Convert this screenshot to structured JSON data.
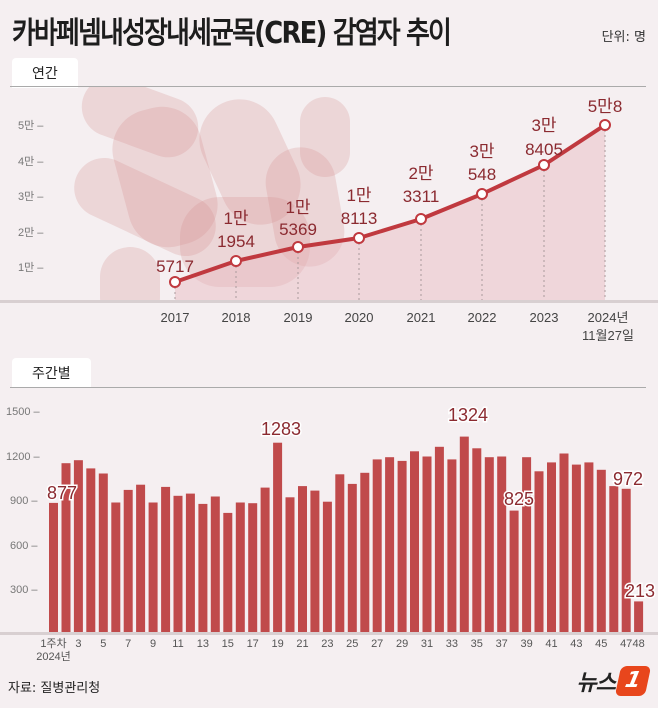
{
  "header": {
    "title": "카바페넴내성장내세균목(CRE) 감염자 추이",
    "unit": "단위: 명"
  },
  "annual_tab": {
    "label": "연간"
  },
  "weekly_tab": {
    "label": "주간별"
  },
  "footer": {
    "source": "자료: 질병관리청",
    "logo_text": "뉴스",
    "logo_mark": "1"
  },
  "colors": {
    "accent": "#c0474a",
    "label": "#8b2a30",
    "background": "#f5eff1"
  },
  "chart_data": [
    {
      "type": "line",
      "title": "연간",
      "categories": [
        "2017",
        "2018",
        "2019",
        "2020",
        "2021",
        "2022",
        "2023",
        "2024년 11월27일"
      ],
      "values": [
        5717,
        11954,
        15369,
        18113,
        23311,
        30548,
        38405,
        58000
      ],
      "data_labels": [
        "5717",
        "1만\n1954",
        "1만\n5369",
        "1만\n8113",
        "2만\n3311",
        "3만\n548",
        "3만\n8405",
        "5만8"
      ],
      "yticks": [
        "1만",
        "2만",
        "3만",
        "4만",
        "5만"
      ],
      "ylim": [
        0,
        60000
      ],
      "xlabel": "",
      "ylabel": "",
      "area_fill": true,
      "grid": false
    },
    {
      "type": "bar",
      "title": "주간별",
      "x_note": "2024년",
      "first_label": "1주차",
      "categories": [
        "1",
        "2",
        "3",
        "4",
        "5",
        "6",
        "7",
        "8",
        "9",
        "10",
        "11",
        "12",
        "13",
        "14",
        "15",
        "16",
        "17",
        "18",
        "19",
        "20",
        "21",
        "22",
        "23",
        "24",
        "25",
        "26",
        "27",
        "28",
        "29",
        "30",
        "31",
        "32",
        "33",
        "34",
        "35",
        "36",
        "37",
        "38",
        "39",
        "40",
        "41",
        "42",
        "43",
        "44",
        "45",
        "46",
        "47",
        "48"
      ],
      "tick_labels": [
        "1주차",
        "3",
        "5",
        "7",
        "9",
        "11",
        "13",
        "15",
        "17",
        "19",
        "21",
        "23",
        "25",
        "27",
        "29",
        "31",
        "33",
        "35",
        "37",
        "39",
        "41",
        "43",
        "45",
        "47",
        "48"
      ],
      "values": [
        877,
        1145,
        1165,
        1110,
        1075,
        880,
        965,
        1000,
        880,
        985,
        925,
        940,
        870,
        920,
        810,
        880,
        875,
        980,
        1283,
        915,
        990,
        960,
        885,
        1070,
        1005,
        1080,
        1170,
        1185,
        1160,
        1225,
        1190,
        1255,
        1170,
        1324,
        1245,
        1185,
        1190,
        825,
        1185,
        1090,
        1150,
        1210,
        1135,
        1150,
        1100,
        990,
        972,
        213
      ],
      "annotated": {
        "1": 877,
        "19": 1283,
        "34": 1324,
        "38": 825,
        "47": 972,
        "48": 213
      },
      "yticks": [
        300,
        600,
        900,
        1200,
        1500
      ],
      "ylim": [
        0,
        1550
      ],
      "xlabel": "",
      "ylabel": "",
      "grid": false
    }
  ]
}
